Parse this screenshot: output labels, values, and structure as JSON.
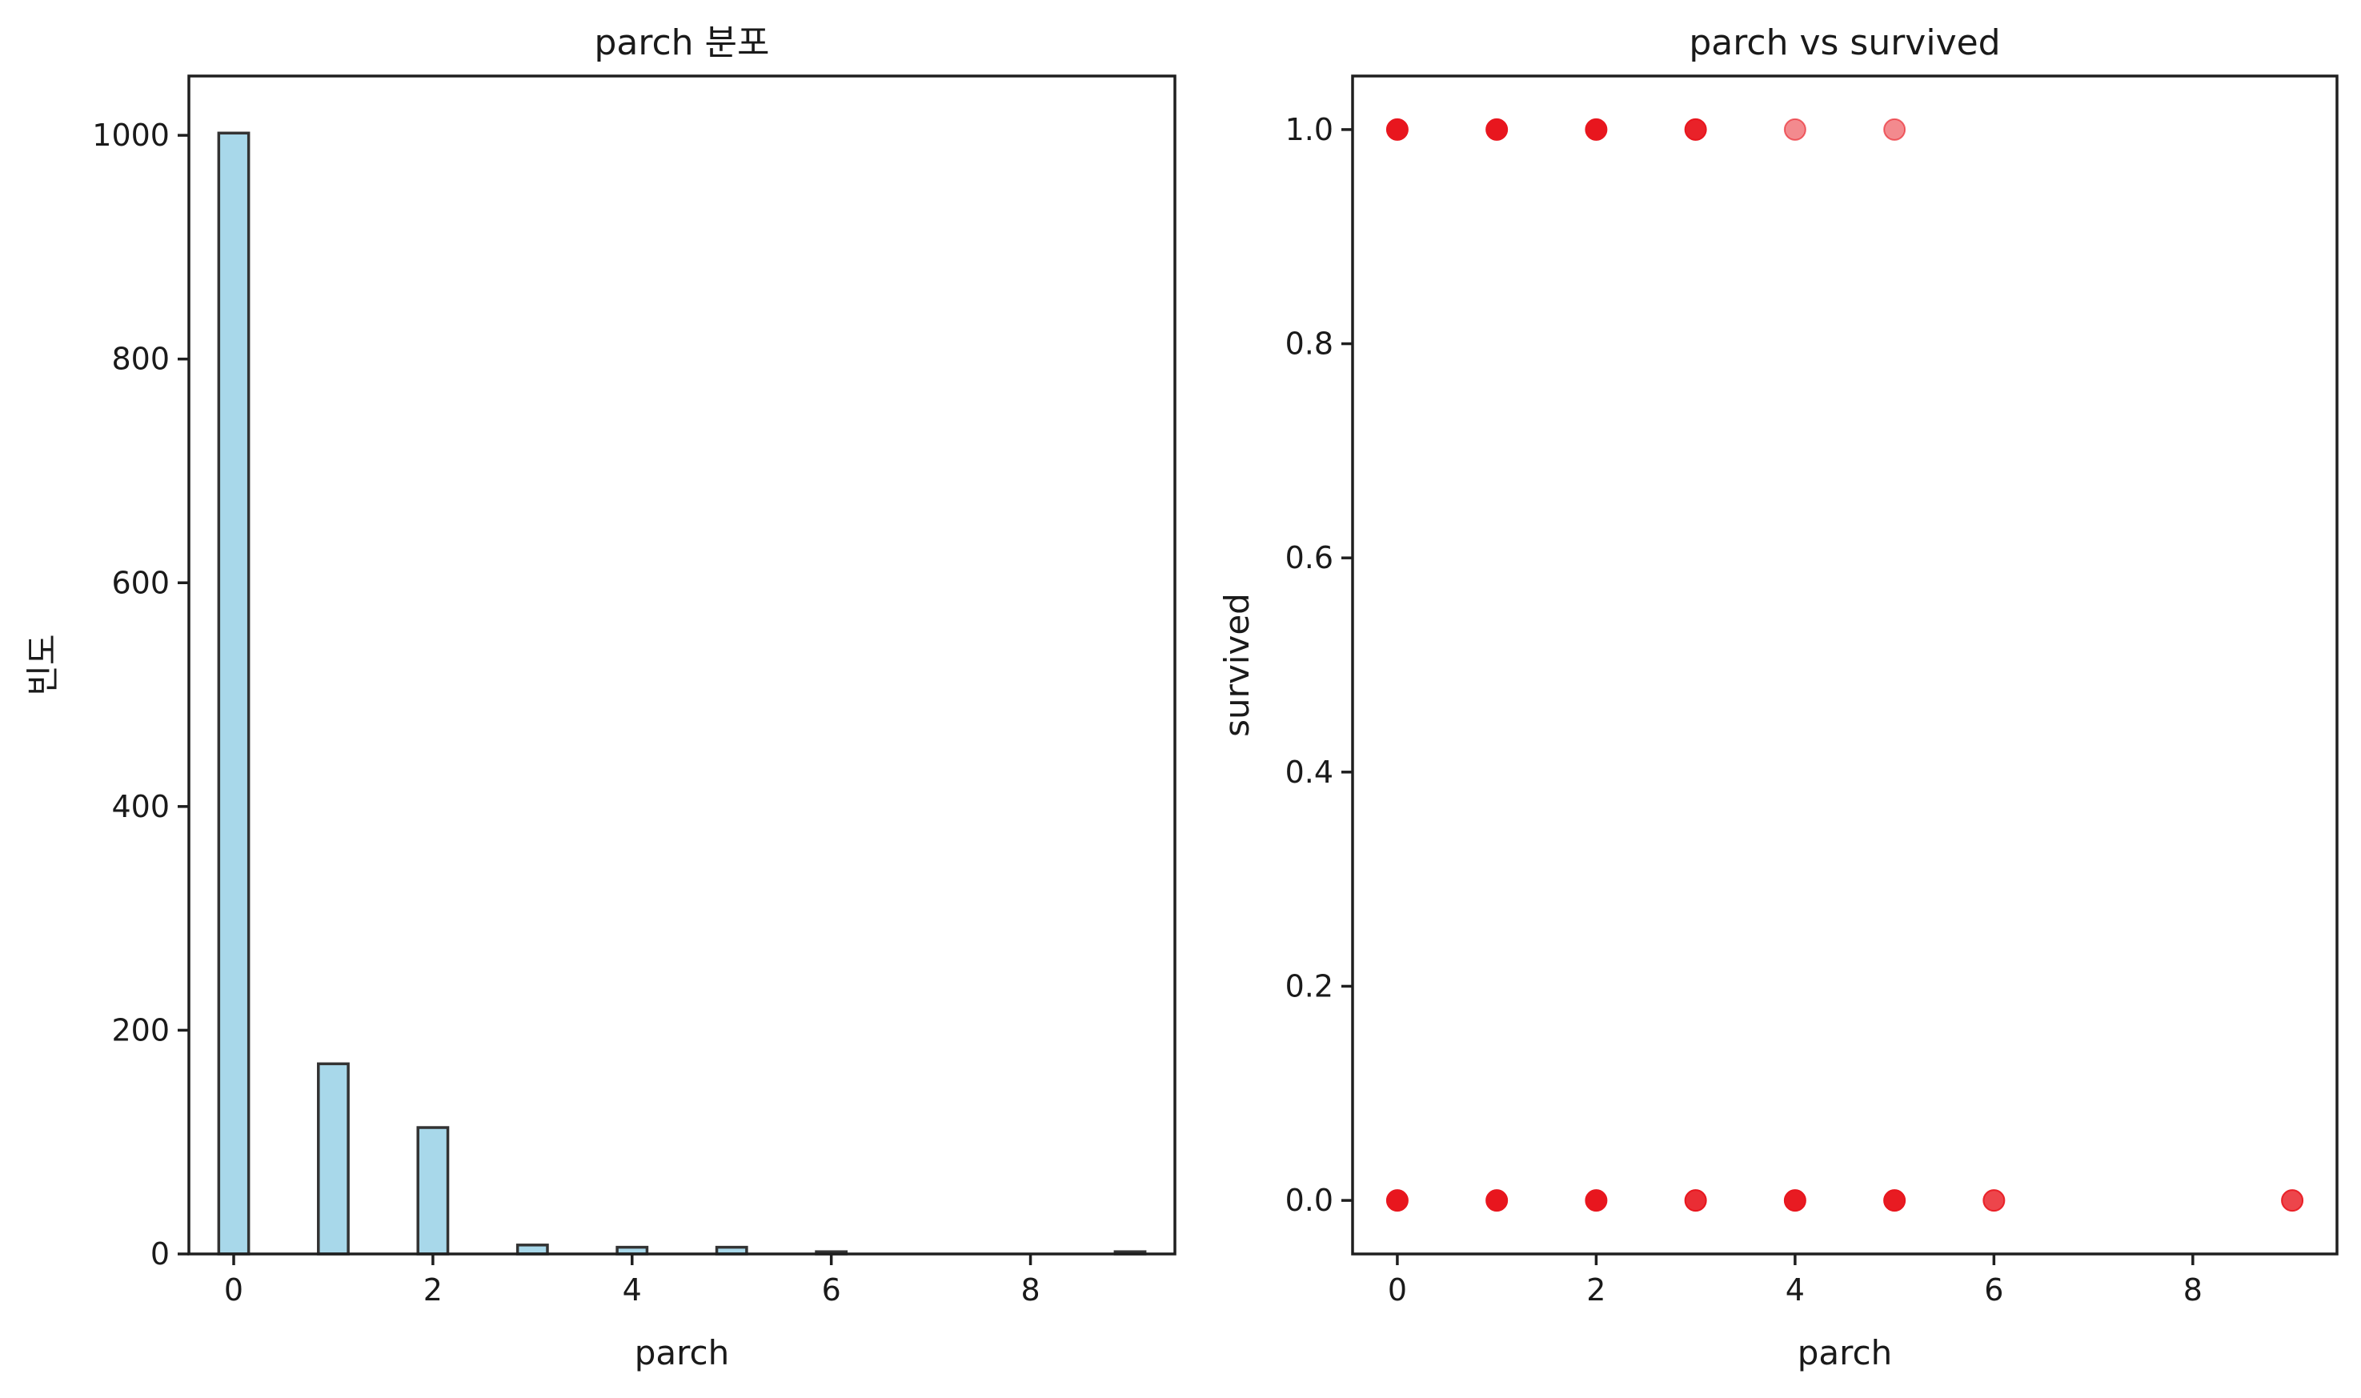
{
  "chart_data": [
    {
      "type": "bar",
      "title": "parch 분포",
      "xlabel": "parch",
      "ylabel": "빈도",
      "bar_color": "#a8d8ea",
      "edge_color": "#333333",
      "xlim": [
        -0.45,
        9.45
      ],
      "ylim": [
        0,
        1053
      ],
      "xticks": [
        0,
        2,
        4,
        6,
        8
      ],
      "yticks": [
        0,
        200,
        400,
        600,
        800,
        1000
      ],
      "bin_width": 0.3,
      "bars": [
        {
          "x": 0,
          "value": 1002
        },
        {
          "x": 1,
          "value": 170
        },
        {
          "x": 2,
          "value": 113
        },
        {
          "x": 3,
          "value": 8
        },
        {
          "x": 4,
          "value": 6
        },
        {
          "x": 5,
          "value": 6
        },
        {
          "x": 6,
          "value": 2
        },
        {
          "x": 9,
          "value": 2
        }
      ]
    },
    {
      "type": "scatter",
      "title": "parch vs survived",
      "xlabel": "parch",
      "ylabel": "survived",
      "point_color": "#e8161e",
      "xlim": [
        -0.45,
        9.45
      ],
      "ylim": [
        -0.05,
        1.05
      ],
      "xticks": [
        0,
        2,
        4,
        6,
        8
      ],
      "yticks": [
        0.0,
        0.2,
        0.4,
        0.6,
        0.8,
        1.0
      ],
      "ytick_labels": [
        "0.0",
        "0.2",
        "0.4",
        "0.6",
        "0.8",
        "1.0"
      ],
      "points": [
        {
          "x": 0,
          "y": 1,
          "opacity": 1.0
        },
        {
          "x": 1,
          "y": 1,
          "opacity": 1.0
        },
        {
          "x": 2,
          "y": 1,
          "opacity": 1.0
        },
        {
          "x": 3,
          "y": 1,
          "opacity": 0.95
        },
        {
          "x": 4,
          "y": 1,
          "opacity": 0.5
        },
        {
          "x": 5,
          "y": 1,
          "opacity": 0.5
        },
        {
          "x": 0,
          "y": 0,
          "opacity": 1.0
        },
        {
          "x": 1,
          "y": 0,
          "opacity": 1.0
        },
        {
          "x": 2,
          "y": 0,
          "opacity": 1.0
        },
        {
          "x": 3,
          "y": 0,
          "opacity": 0.9
        },
        {
          "x": 4,
          "y": 0,
          "opacity": 0.98
        },
        {
          "x": 5,
          "y": 0,
          "opacity": 0.98
        },
        {
          "x": 6,
          "y": 0,
          "opacity": 0.8
        },
        {
          "x": 9,
          "y": 0,
          "opacity": 0.8
        }
      ]
    }
  ]
}
